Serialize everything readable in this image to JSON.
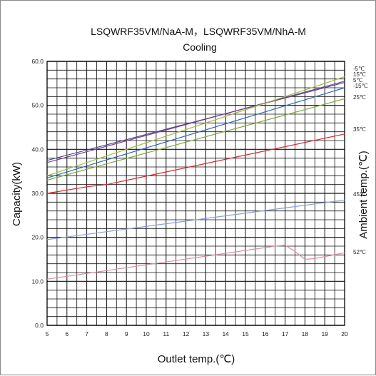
{
  "chart_data": {
    "type": "line",
    "title": "LSQWRF35VM/NaA-M，LSQWRF35VM/NhA-M",
    "subtitle": "Cooling",
    "xlabel": "Outlet temp.(℃)",
    "ylabel": "Capacity(kW)",
    "y2label": "Ambient temp.(℃)",
    "xlim": [
      5,
      20
    ],
    "ylim": [
      0,
      60
    ],
    "x_ticks": [
      "5",
      "6",
      "7",
      "8",
      "9",
      "10",
      "11",
      "12",
      "13",
      "14",
      "15",
      "16",
      "17",
      "18",
      "19",
      "20"
    ],
    "y_ticks": [
      "0.0",
      "10.0",
      "20.0",
      "30.0",
      "40.0",
      "50.0",
      "60.0"
    ],
    "grid": true,
    "series": [
      {
        "name": "-5℃",
        "color": "#4b4b8c",
        "x": [
          5,
          20
        ],
        "y": [
          37.5,
          55.2
        ]
      },
      {
        "name": "15℃",
        "color": "#7a3f96",
        "x": [
          5,
          20
        ],
        "y": [
          37.0,
          55.5
        ]
      },
      {
        "name": "5℃",
        "color": "#2f67c2",
        "x": [
          5,
          20
        ],
        "y": [
          33.5,
          54.0
        ]
      },
      {
        "name": "-15℃",
        "color": "#9bbf3c",
        "x": [
          5,
          20
        ],
        "y": [
          34.0,
          56.5
        ]
      },
      {
        "name": "25℃",
        "color": "#7fa83a",
        "x": [
          5,
          20
        ],
        "y": [
          33.0,
          51.5
        ]
      },
      {
        "name": "35℃",
        "color": "#e0222a",
        "x": [
          5,
          7,
          8,
          20
        ],
        "y": [
          30.0,
          31.5,
          32.0,
          43.5
        ]
      },
      {
        "name": "45℃",
        "color": "#8b9bd8",
        "x": [
          5,
          20
        ],
        "y": [
          19.5,
          28.5
        ]
      },
      {
        "name": "52℃",
        "color": "#d98aa8",
        "x": [
          5,
          16.5,
          17.0,
          17.5,
          18.0,
          18.5,
          20
        ],
        "y": [
          10.5,
          18.0,
          18.2,
          16.8,
          15.0,
          15.2,
          16.5
        ]
      }
    ]
  }
}
